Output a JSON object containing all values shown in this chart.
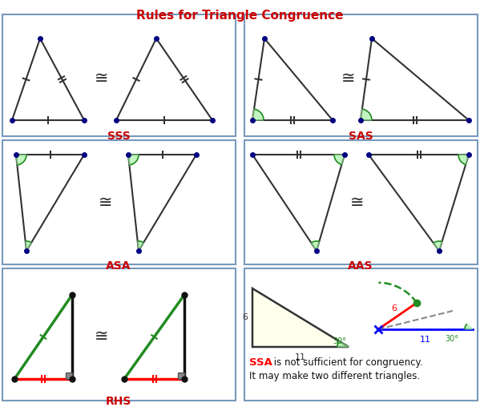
{
  "title": "Rules for Triangle Congruence",
  "title_color": "#cc0000",
  "title_fontsize": 11,
  "bg_color": "#ffffff",
  "box_color": "#7799bb",
  "sss_label": "SSS",
  "sas_label": "SAS",
  "asa_label": "ASA",
  "aas_label": "AAS",
  "rhs_label": "RHS",
  "label_color": "#cc0000",
  "label_fontsize": 10,
  "cong_symbol": "≅",
  "dot_color_blue": "#000080",
  "dot_color_black": "#111111",
  "line_color": "#333333",
  "green_color": "#228B22",
  "red_color": "#cc0000",
  "blue_color": "#0000cc"
}
